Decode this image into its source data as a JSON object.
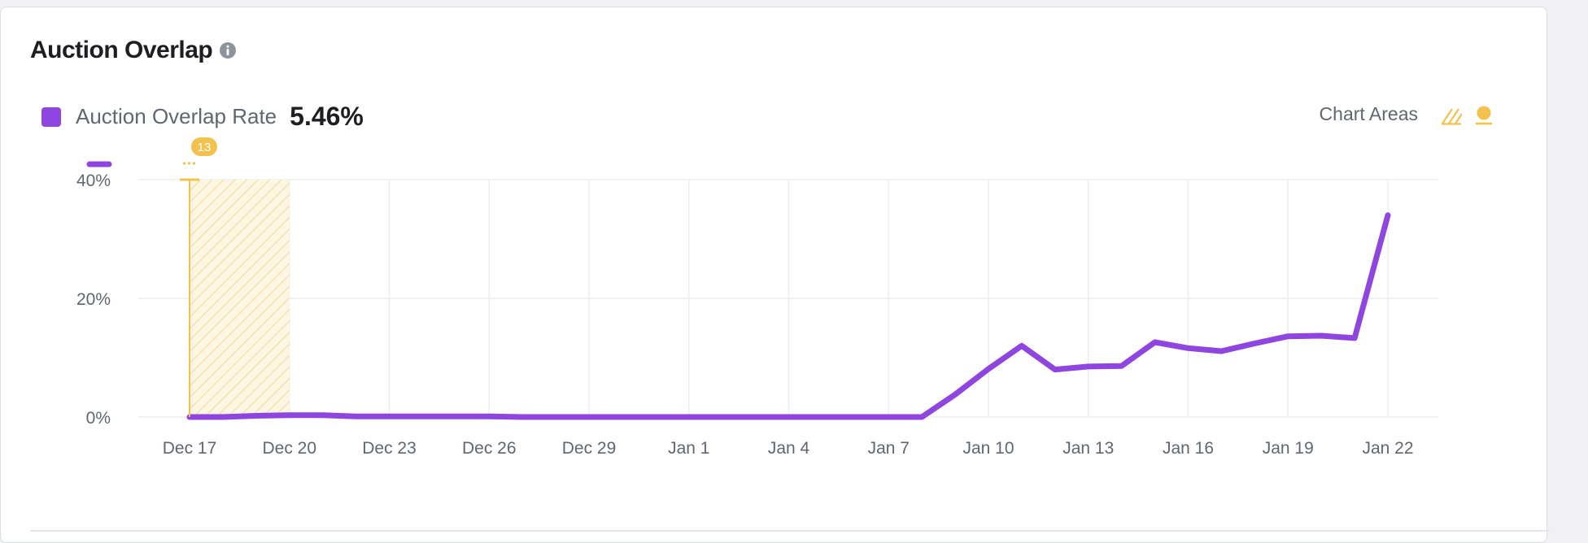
{
  "card": {
    "title": "Auction Overlap",
    "info_icon": "info-icon"
  },
  "legend": {
    "label": "Auction Overlap Rate",
    "value": "5.46%",
    "color": "#8f46e0"
  },
  "chart_areas": {
    "label": "Chart Areas",
    "icons": [
      "hatched-area-icon",
      "marker-pin-icon"
    ],
    "accent_color": "#f2c14e"
  },
  "annotation": {
    "badge": "13",
    "date": "Dec 17",
    "highlight_range": [
      "Dec 17",
      "Dec 20"
    ]
  },
  "chart_data": {
    "type": "line",
    "title": "",
    "xlabel": "",
    "ylabel": "",
    "x_ticks": [
      "Dec 17",
      "Dec 20",
      "Dec 23",
      "Dec 26",
      "Dec 29",
      "Jan 1",
      "Jan 4",
      "Jan 7",
      "Jan 10",
      "Jan 13",
      "Jan 16",
      "Jan 19",
      "Jan 22"
    ],
    "y_ticks": [
      "0%",
      "20%",
      "40%"
    ],
    "ylim": [
      0,
      40
    ],
    "grid": true,
    "series": [
      {
        "name": "Auction Overlap Rate",
        "color": "#8f46e0",
        "x": [
          "Dec 17",
          "Dec 18",
          "Dec 19",
          "Dec 20",
          "Dec 21",
          "Dec 22",
          "Dec 23",
          "Dec 24",
          "Dec 25",
          "Dec 26",
          "Dec 27",
          "Dec 28",
          "Dec 29",
          "Dec 30",
          "Dec 31",
          "Jan 1",
          "Jan 2",
          "Jan 3",
          "Jan 4",
          "Jan 5",
          "Jan 6",
          "Jan 7",
          "Jan 8",
          "Jan 9",
          "Jan 10",
          "Jan 11",
          "Jan 12",
          "Jan 13",
          "Jan 14",
          "Jan 15",
          "Jan 16",
          "Jan 17",
          "Jan 18",
          "Jan 19",
          "Jan 20",
          "Jan 21",
          "Jan 22"
        ],
        "values": [
          0,
          0,
          0.2,
          0.3,
          0.3,
          0.1,
          0.1,
          0.1,
          0.1,
          0.1,
          0,
          0,
          0,
          0,
          0,
          0,
          0,
          0,
          0,
          0,
          0,
          0,
          0,
          3.8,
          8.1,
          12.0,
          8.0,
          8.5,
          8.6,
          12.6,
          11.6,
          11.1,
          12.4,
          13.6,
          13.7,
          13.3,
          34.0
        ]
      }
    ]
  }
}
